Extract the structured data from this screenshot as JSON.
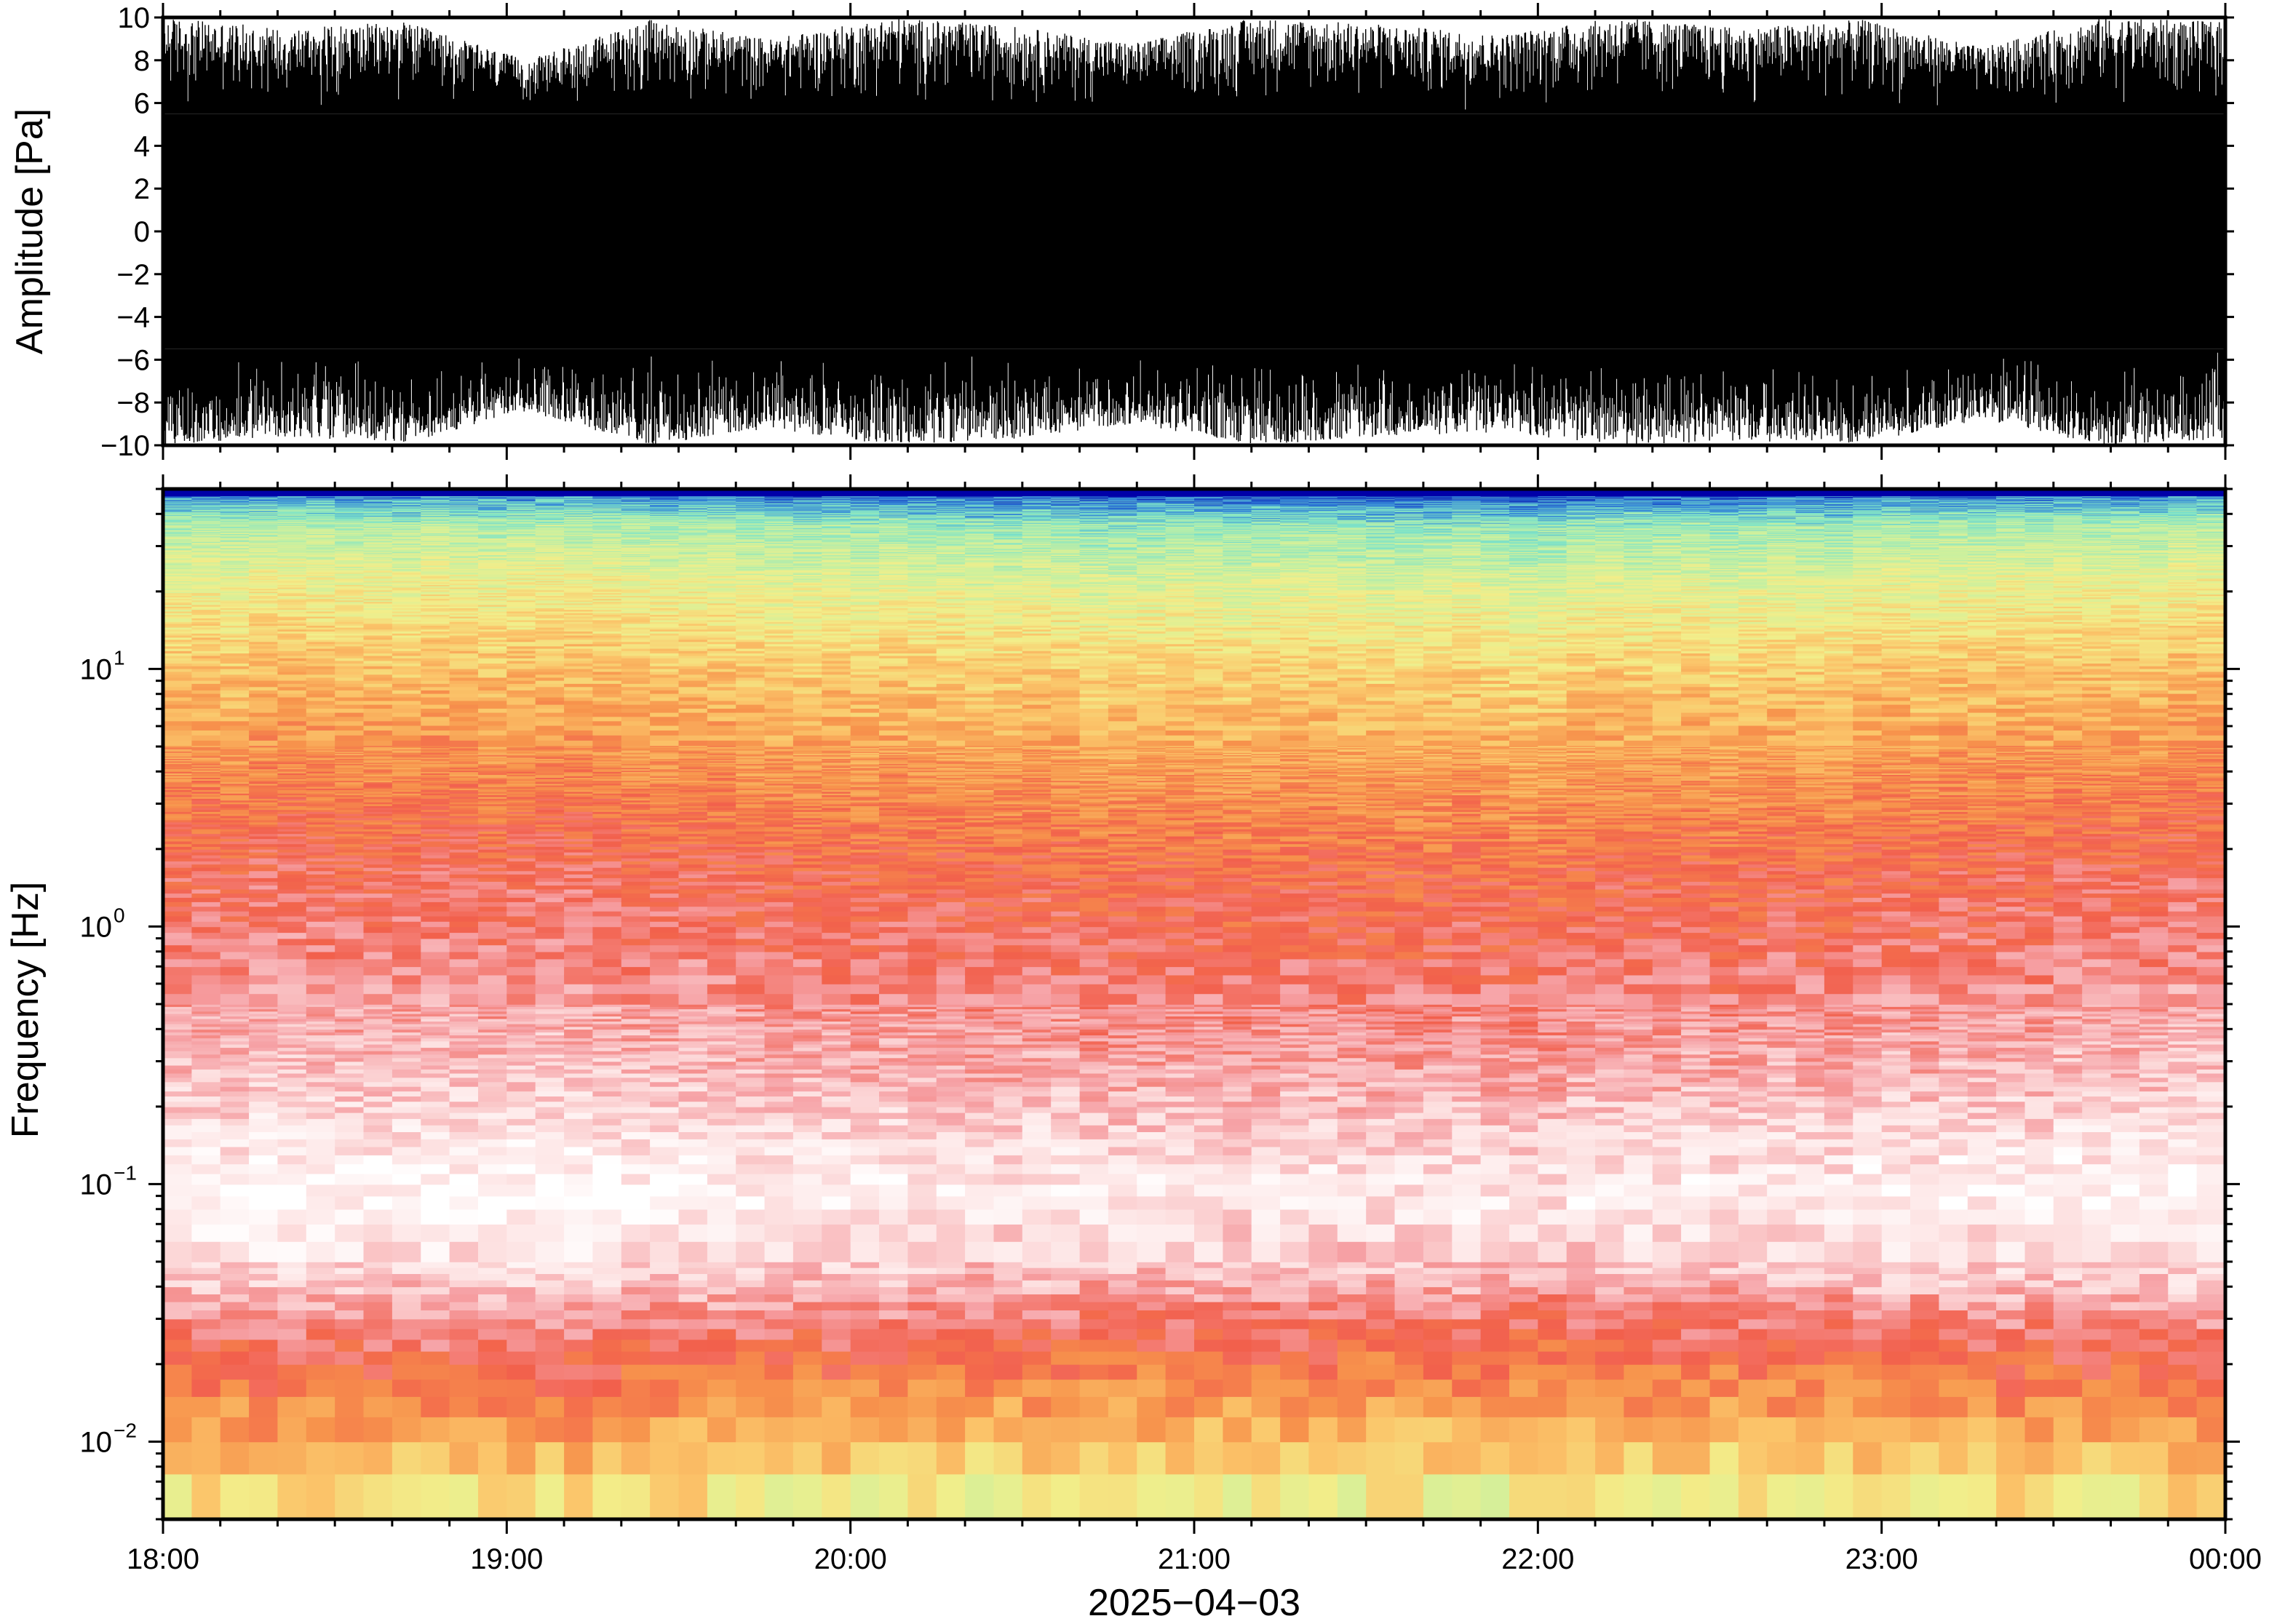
{
  "chart_data": [
    {
      "type": "line",
      "panel": "waveform",
      "ylabel": "Amplitude [Pa]",
      "xlim": [
        "18:00",
        "00:00"
      ],
      "ylim": [
        -10,
        10
      ],
      "yticks": [
        "10",
        "8",
        "6",
        "4",
        "2",
        "0",
        "−2",
        "−4",
        "−6",
        "−8",
        "−10"
      ],
      "series": [
        {
          "values_description_free": true,
          "envelope_upper": [
            10,
            9.5,
            9.8,
            8.0,
            9.9,
            9.0,
            10,
            9.6,
            8.8,
            10,
            9.7,
            9.2,
            10,
            9.5,
            9.9,
            8.6,
            10,
            9.8
          ],
          "envelope_lower": [
            -10,
            -9.6,
            -9.9,
            -8.4,
            -10,
            -9.2,
            -10,
            -9.7,
            -9.0,
            -10,
            -9.6,
            -9.4,
            -10,
            -9.8,
            -9.9,
            -8.8,
            -10,
            -9.7
          ],
          "core_amplitude": 5.5,
          "color": "#000000"
        }
      ]
    },
    {
      "type": "heatmap",
      "panel": "spectrogram",
      "ylabel": "Frequency [Hz]",
      "xlabel": "2025−04−03",
      "xlim": [
        "18:00",
        "00:00"
      ],
      "ylim": [
        0.005,
        50
      ],
      "yscale": "log",
      "yticks": [
        0.01,
        0.1,
        1,
        10
      ],
      "xticks": [
        "18:00",
        "19:00",
        "20:00",
        "21:00",
        "22:00",
        "23:00",
        "00:00"
      ],
      "colormap": [
        "#0000a8",
        "#2f7fd8",
        "#7ee3c8",
        "#c8f0a0",
        "#f2ee8a",
        "#fbc56a",
        "#f7934c",
        "#f2604c",
        "#f6a0a4",
        "#fde0e0",
        "#ffffff"
      ]
    }
  ]
}
